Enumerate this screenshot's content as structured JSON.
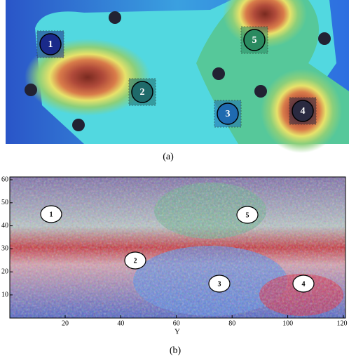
{
  "panel_a": {
    "caption": "(a)",
    "markers": [
      "1",
      "2",
      "3",
      "4",
      "5"
    ]
  },
  "panel_b": {
    "caption": "(b)",
    "markers": [
      "1",
      "2",
      "3",
      "4",
      "5"
    ],
    "xlabel": "Y",
    "xticks": [
      20,
      40,
      60,
      80,
      100,
      120
    ],
    "yticks": [
      10,
      20,
      30,
      40,
      50,
      60
    ]
  }
}
